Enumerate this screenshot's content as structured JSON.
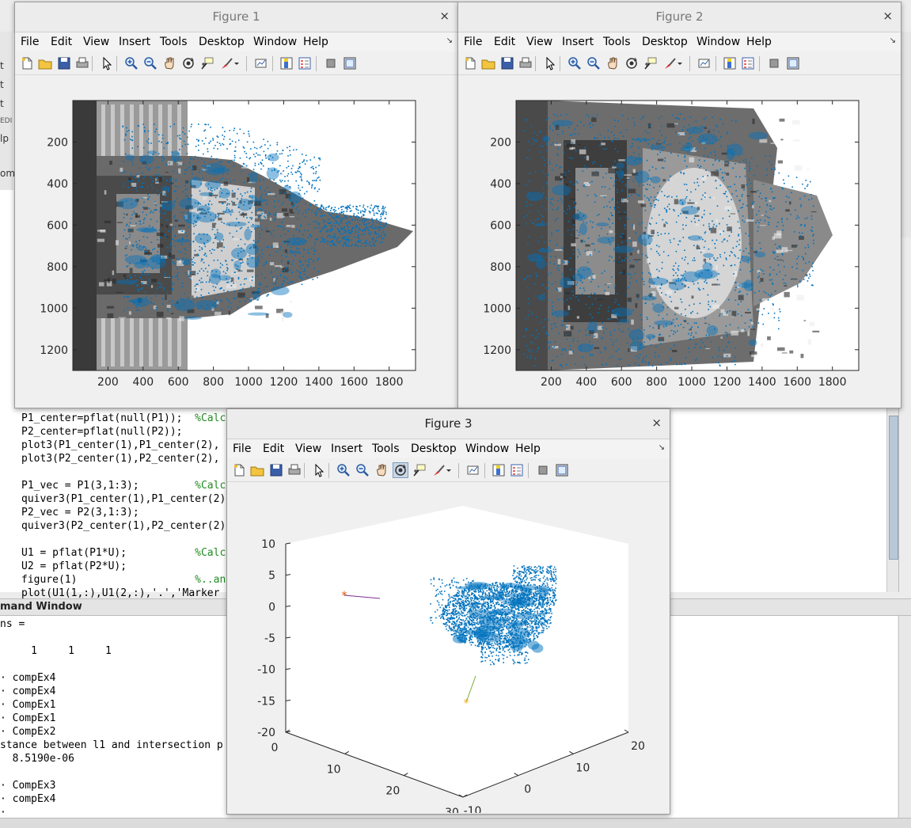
{
  "editor": {
    "lines": [
      {
        "code": "P1_center=pflat(null(P1));  ",
        "comment": "%Calc"
      },
      {
        "code": "P2_center=pflat(null(P2));",
        "comment": ""
      },
      {
        "code": "plot3(P1_center(1),P1_center(2),",
        "comment": ""
      },
      {
        "code": "plot3(P2_center(1),P2_center(2),",
        "comment": ""
      },
      {
        "code": "",
        "comment": ""
      },
      {
        "code": "P1_vec = P1(3,1:3);         ",
        "comment": "%Calc"
      },
      {
        "code": "quiver3(P1_center(1),P1_center(2)",
        "comment": ""
      },
      {
        "code": "P2_vec = P2(3,1:3);",
        "comment": ""
      },
      {
        "code": "quiver3(P2_center(1),P2_center(2)",
        "comment": ""
      },
      {
        "code": "",
        "comment": ""
      },
      {
        "code": "U1 = pflat(P1*U);           ",
        "comment": "%Calc"
      },
      {
        "code": "U2 = pflat(P2*U);",
        "comment": ""
      },
      {
        "code": "figure(1)                   ",
        "comment": "%..an"
      },
      {
        "code": "plot(U1(1,:),U1(2,:),'.','Marker",
        "comment": ""
      }
    ]
  },
  "left_strip": [
    "t",
    "t",
    "t",
    "EDI",
    "lp",
    "om"
  ],
  "command_window": {
    "title": "mand Window",
    "lines": [
      "ns =",
      "",
      "     1     1     1",
      "",
      "· compEx4",
      "· compEx4",
      "· CompEx1",
      "· CompEx1",
      "· CompEx2",
      "stance between l1 and intersection p",
      "  8.5190e-06",
      "",
      "· CompEx3",
      "· compEx4",
      "·"
    ]
  },
  "menus": [
    "File",
    "Edit",
    "View",
    "Insert",
    "Tools",
    "Desktop",
    "Window",
    "Help"
  ],
  "figures": [
    {
      "title": "Figure 1",
      "close": "×"
    },
    {
      "title": "Figure 2",
      "close": "×"
    },
    {
      "title": "Figure 3",
      "close": "×"
    }
  ],
  "toolbar_icons": [
    "new-figure-icon",
    "open-file-icon",
    "save-icon",
    "print-icon",
    "pointer-icon",
    "zoom-in-icon",
    "zoom-out-icon",
    "pan-icon",
    "rotate-3d-icon",
    "data-cursor-icon",
    "brush-icon",
    "brush-dropdown-icon",
    "link-plot-icon",
    "colorbar-icon",
    "legend-icon",
    "hide-plot-tools-icon",
    "show-plot-tools-icon"
  ],
  "colors": {
    "points": "#0072bd",
    "camera1": "#d95319",
    "camera2": "#edb120",
    "camera_vec1": "#7e2f8e",
    "camera_vec2": "#77ac30"
  },
  "figure1_axes": {
    "xticks": [
      "200",
      "400",
      "600",
      "800",
      "1000",
      "1200",
      "1400",
      "1600",
      "1800"
    ],
    "yticks": [
      "200",
      "400",
      "600",
      "800",
      "1000",
      "1200"
    ]
  },
  "figure2_axes": {
    "xticks": [
      "200",
      "400",
      "600",
      "800",
      "1000",
      "1200",
      "1400",
      "1600",
      "1800"
    ],
    "yticks": [
      "200",
      "400",
      "600",
      "800",
      "1000",
      "1200"
    ]
  },
  "figure3_axes": {
    "zticks": [
      "10",
      "5",
      "0",
      "-5",
      "-10",
      "-15",
      "-20"
    ],
    "xticks": [
      "0",
      "10",
      "20",
      "30"
    ],
    "yticks": [
      "-10",
      "0",
      "10",
      "20"
    ]
  }
}
